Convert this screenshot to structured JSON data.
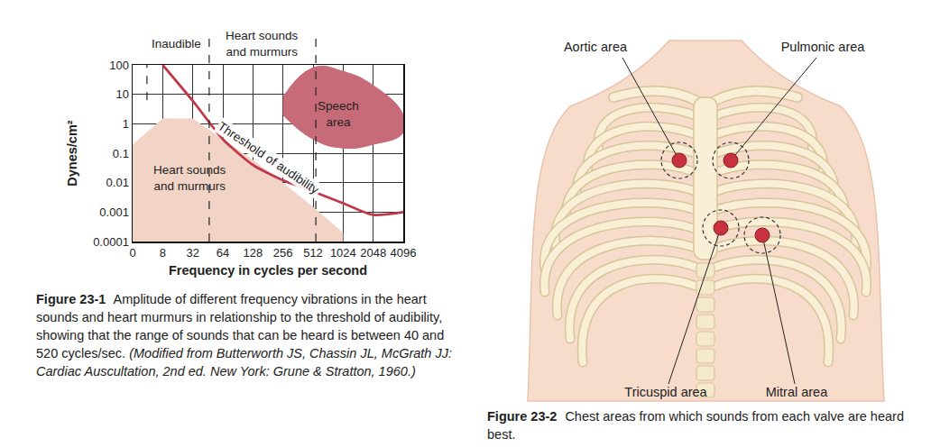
{
  "chart_data": {
    "type": "line",
    "x_label": "Frequency in cycles per second",
    "y_label": "Dynes/cm²",
    "categories": [
      "0",
      "8",
      "32",
      "64",
      "128",
      "256",
      "512",
      "1024",
      "2048",
      "4096"
    ],
    "log": "y",
    "ylim": [
      0.0001,
      100
    ],
    "yticks": [
      0.0001,
      0.001,
      0.01,
      0.1,
      1,
      10,
      100
    ],
    "grid": true,
    "series": [
      {
        "label": [
          "Heart sounds",
          "and murmurs"
        ],
        "type": "area",
        "color": "#f2d4c6",
        "values": [
          0.2,
          1.5,
          1.5,
          0.3,
          0.06,
          0.01,
          0.0015,
          0.0002,
          null,
          null
        ]
      },
      {
        "label": [
          "Threshold of audibility"
        ],
        "type": "line",
        "color": "#c0394b",
        "values": [
          null,
          100,
          6,
          0.3,
          0.04,
          0.012,
          0.005,
          0.002,
          0.0008,
          0.001
        ]
      }
    ],
    "regions": [
      {
        "label": [
          "Speech",
          "area"
        ],
        "color": "#c76b78",
        "x": [
          "256",
          "512",
          "1024",
          "2048",
          "4096",
          "4096",
          "2048",
          "1024",
          "512",
          "256"
        ],
        "y": [
          8,
          80,
          60,
          20,
          2,
          0.5,
          0.2,
          0.15,
          0.3,
          2
        ]
      }
    ],
    "bands": [
      {
        "label": [
          "Inaudible"
        ]
      },
      {
        "label": [
          "Heart sounds",
          "and murmurs"
        ]
      }
    ]
  },
  "figure_1_caption": {
    "number": "Figure 23-1",
    "text": "Amplitude of different frequency vibrations in the heart sounds and heart murmurs in relationship to the threshold of audibility, showing that the range of sounds that can be heard is between 40 and 520 cycles/sec.",
    "citation": "(Modified from Butterworth JS, Chassin JL, McGrath JJ: Cardiac Auscultation, 2nd ed. New York: Grune & Stratton, 1960.)"
  },
  "diagram": {
    "areas": [
      {
        "label": "Aortic area"
      },
      {
        "label": "Pulmonic area"
      },
      {
        "label": "Tricuspid area"
      },
      {
        "label": "Mitral area"
      }
    ]
  },
  "figure_2_caption": {
    "number": "Figure 23-2",
    "text": "Chest areas from which sounds from each valve are heard best."
  }
}
